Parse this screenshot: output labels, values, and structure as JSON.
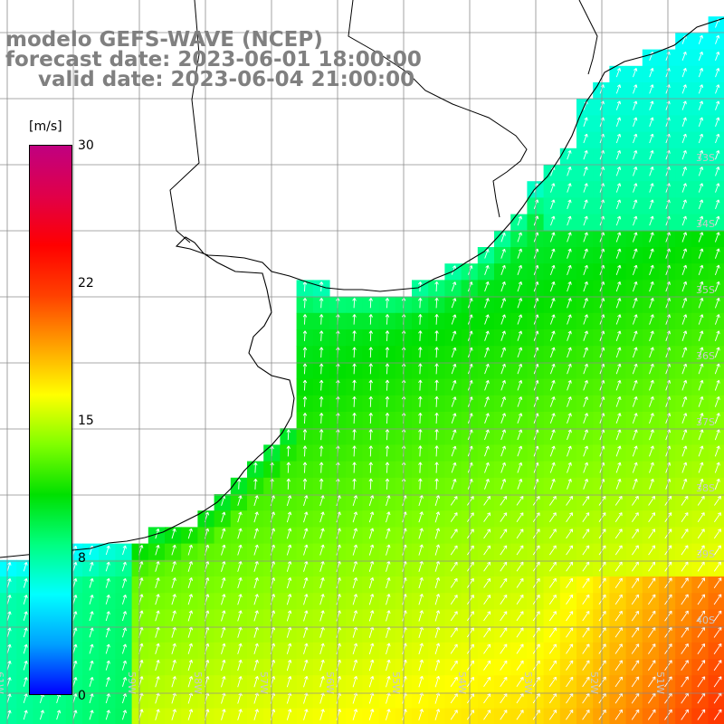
{
  "title": {
    "line1": "modelo GEFS-WAVE (NCEP)",
    "line2": "forecast date: 2023-06-01 18:00:00",
    "line3": "valid date: 2023-06-04 21:00:00"
  },
  "colorbar": {
    "units": "[m/s]",
    "ticks": [
      {
        "label": "30",
        "value": 30
      },
      {
        "label": "22",
        "value": 22
      },
      {
        "label": "15",
        "value": 15
      },
      {
        "label": "8",
        "value": 8
      },
      {
        "label": "0",
        "value": 0
      }
    ],
    "min": 0,
    "max": 30,
    "colors": [
      "#0000ff",
      "#00a0ff",
      "#00ffff",
      "#00ff80",
      "#00e000",
      "#80ff00",
      "#ffff00",
      "#ffa000",
      "#ff4000",
      "#ff0000",
      "#e0004a",
      "#c00080"
    ]
  },
  "lat_labels": [
    "33S",
    "34S",
    "35S",
    "36S",
    "37S",
    "38S",
    "39S",
    "40S"
  ],
  "lon_labels": [
    "61W",
    "60W",
    "59W",
    "58W",
    "57W",
    "56W",
    "55W",
    "54W",
    "53W",
    "52W",
    "51W"
  ],
  "map_data": {
    "variable": "wind speed",
    "units": "m/s",
    "lon_range": [
      -61,
      -50
    ],
    "lat_range": [
      -41,
      -31
    ]
  }
}
